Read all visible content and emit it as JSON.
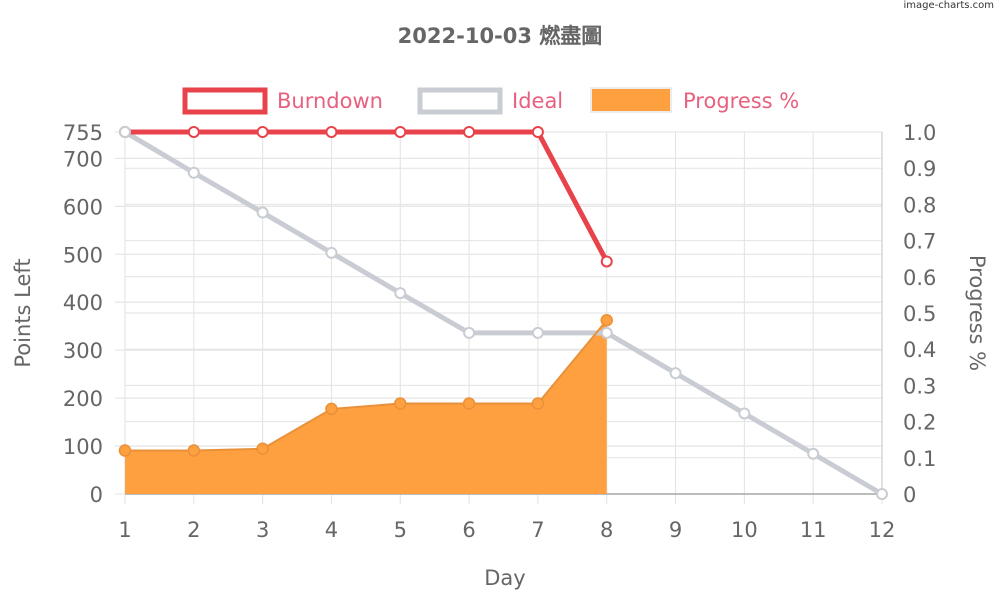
{
  "watermark": "image-charts.com",
  "chart_data": {
    "type": "line",
    "title": "2022-10-03 燃盡圖",
    "xlabel": "Day",
    "ylabel_left": "Points Left",
    "ylabel_right": "Progress %",
    "x": [
      1,
      2,
      3,
      4,
      5,
      6,
      7,
      8,
      9,
      10,
      11,
      12
    ],
    "y_left_range": [
      0,
      755
    ],
    "y_left_ticks": [
      0,
      100,
      200,
      300,
      400,
      500,
      600,
      700,
      755
    ],
    "y_right_range": [
      0,
      1.0
    ],
    "y_right_ticks": [
      "0",
      "0.1",
      "0.2",
      "0.3",
      "0.4",
      "0.5",
      "0.6",
      "0.7",
      "0.8",
      "0.9",
      "1.0"
    ],
    "grid": true,
    "legend_position": "top",
    "series": [
      {
        "name": "Burndown",
        "kind": "line",
        "axis": "left",
        "color": "#e8434b",
        "x": [
          1,
          2,
          3,
          4,
          5,
          6,
          7,
          8
        ],
        "values": [
          755,
          755,
          755,
          755,
          755,
          755,
          755,
          485
        ]
      },
      {
        "name": "Ideal",
        "kind": "line",
        "axis": "left",
        "color": "#c9cdd3",
        "x": [
          1,
          2,
          3,
          4,
          5,
          6,
          7,
          8,
          9,
          10,
          11,
          12
        ],
        "values": [
          755,
          670,
          587,
          503,
          419,
          336,
          336,
          336,
          252,
          168,
          84,
          0
        ]
      },
      {
        "name": "Progress %",
        "kind": "area",
        "axis": "right",
        "color": "#ffa040",
        "x": [
          1,
          2,
          3,
          4,
          5,
          6,
          7,
          8
        ],
        "values": [
          0.12,
          0.12,
          0.125,
          0.235,
          0.25,
          0.25,
          0.25,
          0.48
        ]
      }
    ]
  }
}
